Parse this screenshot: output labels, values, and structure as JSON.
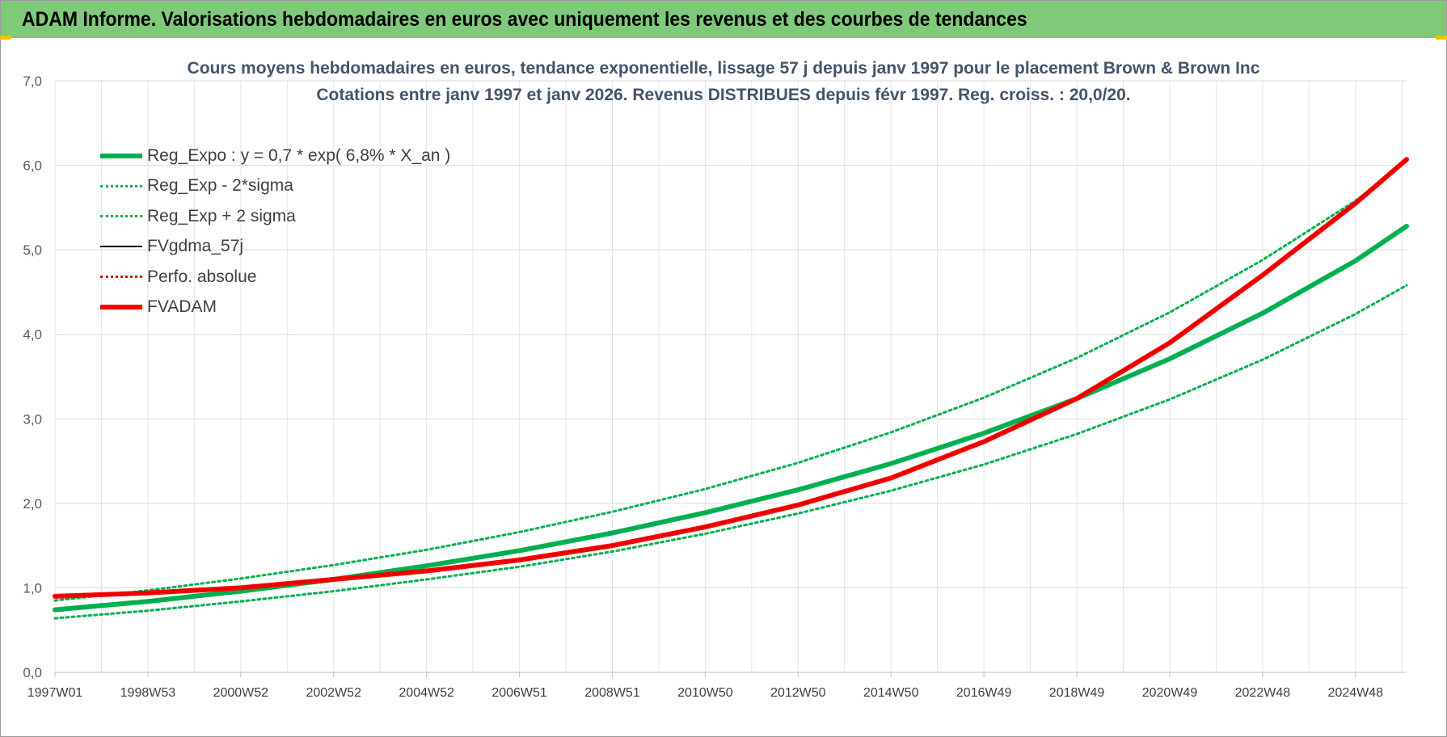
{
  "header": {
    "title": "ADAM Informe. Valorisations hebdomadaires en euros avec uniquement les revenus et des courbes de tendances"
  },
  "chart_data": {
    "type": "line",
    "title": "Cours moyens hebdomadaires en euros, tendance exponentielle, lissage 57 j depuis janv 1997 pour le placement Brown & Brown Inc",
    "subtitle": "Cotations entre janv 1997 et janv 2026. Revenus DISTRIBUES depuis févr 1997. Reg. croiss. : 20,0/20.",
    "xlabel": "",
    "ylabel": "",
    "ylim": [
      0,
      7
    ],
    "yticks": [
      "0,0",
      "1,0",
      "2,0",
      "3,0",
      "4,0",
      "5,0",
      "6,0",
      "7,0"
    ],
    "xlim": [
      1997.0,
      2026.1
    ],
    "xticks": [
      {
        "label": "1997W01",
        "x": 1997.0
      },
      {
        "label": "1998W53",
        "x": 1999.0
      },
      {
        "label": "2000W52",
        "x": 2001.0
      },
      {
        "label": "2002W52",
        "x": 2003.0
      },
      {
        "label": "2004W52",
        "x": 2005.0
      },
      {
        "label": "2006W51",
        "x": 2007.0
      },
      {
        "label": "2008W51",
        "x": 2009.0
      },
      {
        "label": "2010W50",
        "x": 2011.0
      },
      {
        "label": "2012W50",
        "x": 2013.0
      },
      {
        "label": "2014W50",
        "x": 2015.0
      },
      {
        "label": "2016W49",
        "x": 2017.0
      },
      {
        "label": "2018W49",
        "x": 2019.0
      },
      {
        "label": "2020W49",
        "x": 2021.0
      },
      {
        "label": "2022W48",
        "x": 2023.0
      },
      {
        "label": "2024W48",
        "x": 2025.0
      }
    ],
    "grid": true,
    "legend_position": "top-left",
    "series": [
      {
        "name": "Reg_Expo : y = 0,7 * exp( 6,8% *  X_an )",
        "color": "#00b050",
        "style": "solid-thick",
        "x": [
          1997,
          1999,
          2001,
          2003,
          2005,
          2007,
          2009,
          2011,
          2013,
          2015,
          2017,
          2019,
          2021,
          2023,
          2025,
          2026.1
        ],
        "values": [
          0.74,
          0.84,
          0.96,
          1.1,
          1.26,
          1.44,
          1.65,
          1.89,
          2.16,
          2.47,
          2.83,
          3.24,
          3.71,
          4.25,
          4.87,
          5.28
        ]
      },
      {
        "name": "Reg_Exp - 2*sigma",
        "color": "#00b050",
        "style": "dotted",
        "x": [
          1997,
          1999,
          2001,
          2003,
          2005,
          2007,
          2009,
          2011,
          2013,
          2015,
          2017,
          2019,
          2021,
          2023,
          2025,
          2026.1
        ],
        "values": [
          0.64,
          0.73,
          0.84,
          0.96,
          1.1,
          1.25,
          1.43,
          1.64,
          1.88,
          2.15,
          2.46,
          2.82,
          3.23,
          3.7,
          4.24,
          4.58
        ]
      },
      {
        "name": "Reg_Exp + 2 sigma",
        "color": "#00b050",
        "style": "dotted",
        "x": [
          1997,
          1999,
          2001,
          2003,
          2005,
          2007,
          2009,
          2011,
          2013,
          2015,
          2017,
          2019,
          2021,
          2023,
          2025,
          2026.1
        ],
        "values": [
          0.85,
          0.97,
          1.11,
          1.27,
          1.45,
          1.66,
          1.9,
          2.17,
          2.48,
          2.84,
          3.25,
          3.72,
          4.26,
          4.88,
          5.58,
          6.05
        ]
      },
      {
        "name": "FVgdma_57j",
        "color": "#000000",
        "style": "solid",
        "x": [
          1997,
          1999,
          2001,
          2003,
          2005,
          2007,
          2009,
          2011,
          2013,
          2015,
          2017,
          2019,
          2021,
          2023,
          2025,
          2026.1
        ],
        "values": [
          0.9,
          0.94,
          1.0,
          1.1,
          1.2,
          1.33,
          1.5,
          1.72,
          1.98,
          2.3,
          2.73,
          3.24,
          3.9,
          4.7,
          5.55,
          6.07
        ]
      },
      {
        "name": "Perfo. absolue",
        "color": "#e00000",
        "style": "dotted",
        "x": [
          1997,
          1999,
          2001,
          2003,
          2005,
          2007,
          2009,
          2011,
          2013,
          2015,
          2017,
          2019,
          2021,
          2023,
          2025,
          2026.1
        ],
        "values": [
          0.9,
          0.94,
          1.0,
          1.1,
          1.2,
          1.33,
          1.5,
          1.72,
          1.98,
          2.3,
          2.73,
          3.24,
          3.9,
          4.7,
          5.55,
          6.07
        ]
      },
      {
        "name": "FVADAM",
        "color": "#ff0000",
        "style": "solid-thick",
        "x": [
          1997,
          1999,
          2001,
          2003,
          2005,
          2007,
          2009,
          2011,
          2013,
          2015,
          2017,
          2019,
          2021,
          2023,
          2025,
          2026.1
        ],
        "values": [
          0.9,
          0.94,
          1.0,
          1.1,
          1.2,
          1.33,
          1.5,
          1.72,
          1.98,
          2.3,
          2.73,
          3.24,
          3.9,
          4.7,
          5.55,
          6.07
        ]
      }
    ]
  }
}
